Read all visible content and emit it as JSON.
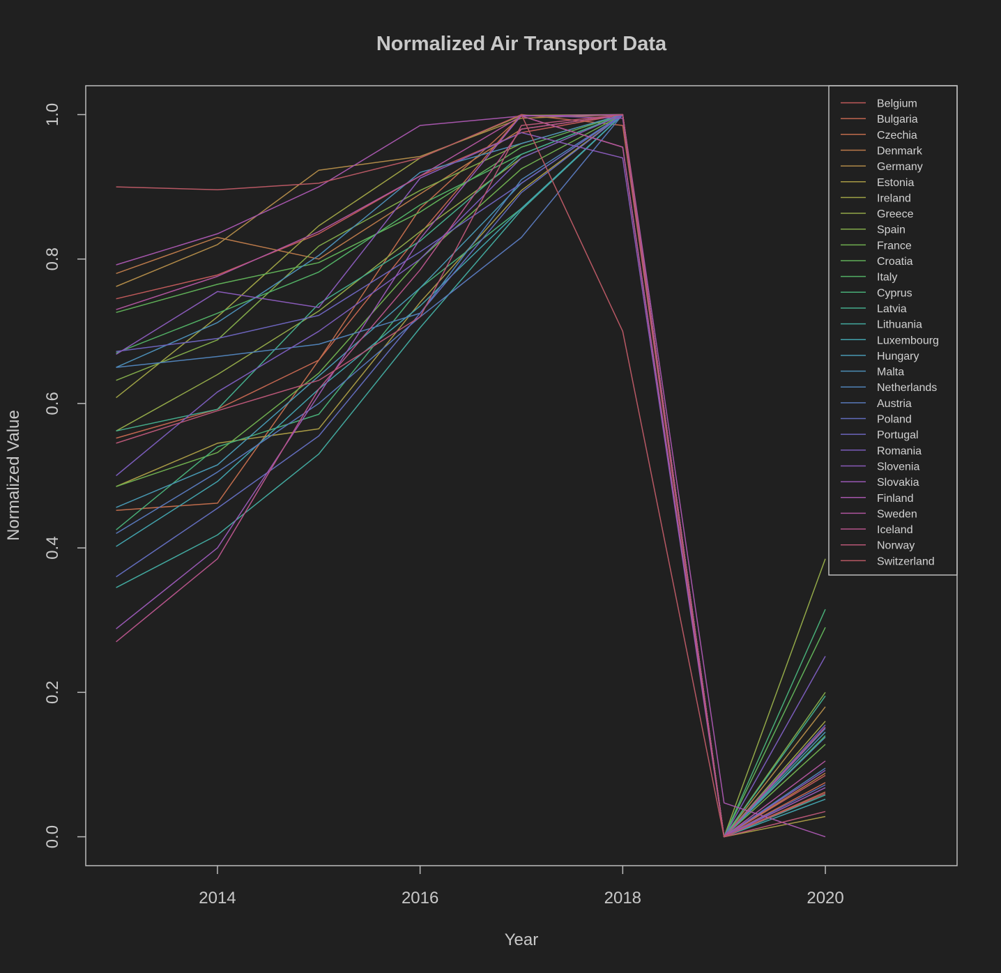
{
  "chart_data": {
    "type": "line",
    "title": "Normalized Air Transport Data",
    "xlabel": "Year",
    "ylabel": "Normalized Value",
    "x": [
      2013,
      2014,
      2015,
      2016,
      2017,
      2018,
      2019,
      2020
    ],
    "xlim": [
      2012.7,
      2021.3
    ],
    "ylim": [
      -0.04,
      1.04
    ],
    "xticks": [
      2014,
      2016,
      2018,
      2020
    ],
    "yticks": [
      0.0,
      0.2,
      0.4,
      0.6,
      0.8,
      1.0
    ],
    "ytick_labels": [
      "0.0",
      "0.2",
      "0.4",
      "0.6",
      "0.8",
      "1.0"
    ],
    "legend_position": "top-right",
    "grid": false,
    "series": [
      {
        "name": "Belgium",
        "color": "#c05a5a",
        "values": [
          0.745,
          0.778,
          0.835,
          0.915,
          0.975,
          1.0,
          0.0,
          0.085
        ]
      },
      {
        "name": "Bulgaria",
        "color": "#c0654f",
        "values": [
          0.552,
          0.592,
          0.66,
          0.835,
          1.0,
          0.985,
          0.0,
          0.075
        ]
      },
      {
        "name": "Czechia",
        "color": "#c06c4c",
        "values": [
          0.452,
          0.462,
          0.66,
          0.87,
          0.998,
          0.955,
          0.0,
          0.062
        ]
      },
      {
        "name": "Denmark",
        "color": "#bb7a4a",
        "values": [
          0.78,
          0.83,
          0.8,
          0.89,
          0.98,
          1.0,
          0.0,
          0.088
        ]
      },
      {
        "name": "Germany",
        "color": "#b08a48",
        "values": [
          0.762,
          0.82,
          0.923,
          0.942,
          0.995,
          1.0,
          0.0,
          0.18
        ]
      },
      {
        "name": "Estonia",
        "color": "#a89a45",
        "values": [
          0.485,
          0.545,
          0.565,
          0.74,
          0.895,
          1.0,
          0.0,
          0.028
        ]
      },
      {
        "name": "Ireland",
        "color": "#9ea245",
        "values": [
          0.608,
          0.72,
          0.846,
          0.94,
          0.999,
          1.0,
          0.0,
          0.16
        ]
      },
      {
        "name": "Greece",
        "color": "#92a848",
        "values": [
          0.562,
          0.64,
          0.728,
          0.838,
          0.94,
          1.0,
          0.0,
          0.385
        ]
      },
      {
        "name": "Spain",
        "color": "#82aa4a",
        "values": [
          0.632,
          0.688,
          0.818,
          0.895,
          0.96,
          1.0,
          0.0,
          0.2
        ]
      },
      {
        "name": "France",
        "color": "#6fae4f",
        "values": [
          0.485,
          0.532,
          0.642,
          0.8,
          0.925,
          1.0,
          0.0,
          0.128
        ]
      },
      {
        "name": "Croatia",
        "color": "#60b058",
        "values": [
          0.726,
          0.765,
          0.795,
          0.865,
          0.955,
          1.0,
          0.0,
          0.29
        ]
      },
      {
        "name": "Italy",
        "color": "#52b065",
        "values": [
          0.67,
          0.725,
          0.782,
          0.875,
          0.945,
          1.0,
          0.0,
          0.14
        ]
      },
      {
        "name": "Cyprus",
        "color": "#48ae78",
        "values": [
          0.425,
          0.54,
          0.585,
          0.76,
          0.87,
          1.0,
          0.0,
          0.315
        ]
      },
      {
        "name": "Latvia",
        "color": "#44ac8c",
        "values": [
          0.562,
          0.592,
          0.738,
          0.825,
          0.945,
          1.0,
          0.0,
          0.195
        ]
      },
      {
        "name": "Lithuania",
        "color": "#42a89e",
        "values": [
          0.345,
          0.418,
          0.53,
          0.705,
          0.868,
          1.0,
          0.0,
          0.058
        ]
      },
      {
        "name": "Luxembourg",
        "color": "#42a2ac",
        "values": [
          0.402,
          0.492,
          0.62,
          0.735,
          0.87,
          1.0,
          0.0,
          0.052
        ]
      },
      {
        "name": "Hungary",
        "color": "#4898b2",
        "values": [
          0.456,
          0.515,
          0.638,
          0.76,
          0.905,
          1.0,
          0.0,
          0.145
        ]
      },
      {
        "name": "Malta",
        "color": "#4c8eb6",
        "values": [
          0.65,
          0.712,
          0.805,
          0.92,
          0.96,
          1.0,
          0.0,
          0.138
        ]
      },
      {
        "name": "Netherlands",
        "color": "#5082b8",
        "values": [
          0.65,
          0.665,
          0.682,
          0.725,
          0.91,
          1.0,
          0.0,
          0.095
        ]
      },
      {
        "name": "Austria",
        "color": "#5878ba",
        "values": [
          0.42,
          0.505,
          0.6,
          0.72,
          0.83,
          1.0,
          0.0,
          0.15
        ]
      },
      {
        "name": "Poland",
        "color": "#626cbc",
        "values": [
          0.36,
          0.455,
          0.555,
          0.725,
          0.892,
          1.0,
          0.0,
          0.072
        ]
      },
      {
        "name": "Portugal",
        "color": "#6c64bc",
        "values": [
          0.672,
          0.69,
          0.722,
          0.81,
          0.905,
          1.0,
          0.0,
          0.155
        ]
      },
      {
        "name": "Romania",
        "color": "#7a5cba",
        "values": [
          0.5,
          0.616,
          0.7,
          0.8,
          0.94,
          1.0,
          0.0,
          0.25
        ]
      },
      {
        "name": "Slovenia",
        "color": "#885ab8",
        "values": [
          0.668,
          0.755,
          0.733,
          0.912,
          0.975,
          0.94,
          0.0,
          0.092
        ]
      },
      {
        "name": "Slovakia",
        "color": "#9858b4",
        "values": [
          0.288,
          0.4,
          0.612,
          0.828,
          0.999,
          0.995,
          0.0,
          0.068
        ]
      },
      {
        "name": "Finland",
        "color": "#a656ac",
        "values": [
          0.792,
          0.835,
          0.9,
          0.985,
          0.998,
          1.0,
          0.047,
          0.0
        ]
      },
      {
        "name": "Sweden",
        "color": "#b0559e",
        "values": [
          0.73,
          0.776,
          0.838,
          0.915,
          0.998,
          0.955,
          0.0,
          0.105
        ]
      },
      {
        "name": "Iceland",
        "color": "#b6548a",
        "values": [
          0.27,
          0.385,
          0.62,
          0.785,
          0.98,
          1.0,
          0.0,
          0.152
        ]
      },
      {
        "name": "Norway",
        "color": "#b85676",
        "values": [
          0.545,
          0.59,
          0.632,
          0.72,
          0.985,
          1.0,
          0.0,
          0.035
        ]
      },
      {
        "name": "Switzerland",
        "color": "#b85864",
        "values": [
          0.9,
          0.896,
          0.905,
          0.94,
          1.0,
          0.7,
          0.0,
          0.06
        ]
      }
    ]
  }
}
